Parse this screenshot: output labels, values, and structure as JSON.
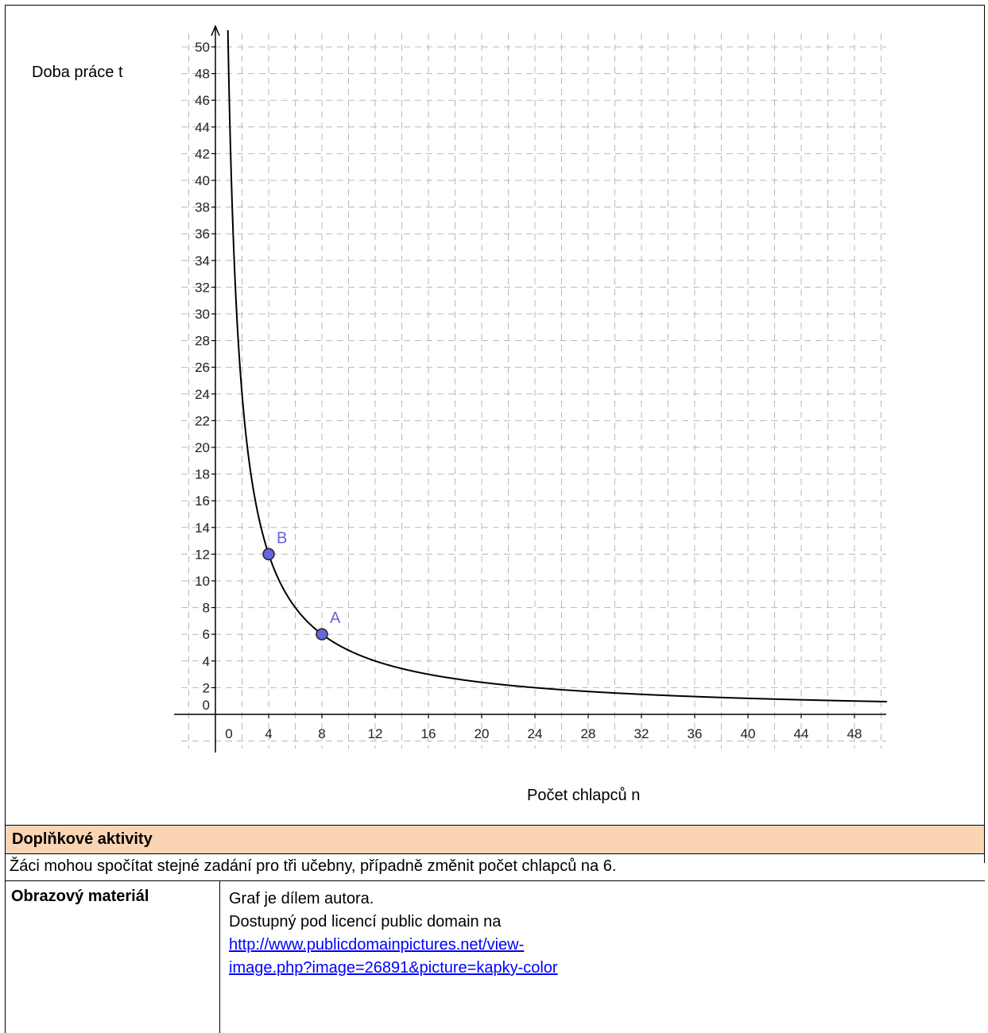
{
  "chart_data": {
    "type": "line",
    "title": "",
    "xlabel": "Počet chlapců n",
    "ylabel": "Doba práce t",
    "xlim": [
      -4,
      50
    ],
    "ylim": [
      -2,
      51
    ],
    "x_ticks": [
      0,
      4,
      8,
      12,
      16,
      20,
      24,
      28,
      32,
      36,
      40,
      44,
      48
    ],
    "y_ticks": [
      0,
      2,
      4,
      6,
      8,
      10,
      12,
      14,
      16,
      18,
      20,
      22,
      24,
      26,
      28,
      30,
      32,
      34,
      36,
      38,
      40,
      42,
      44,
      46,
      48,
      50
    ],
    "grid": true,
    "series": [
      {
        "function": "t = 48 / n",
        "x": [
          1,
          1.5,
          2,
          3,
          4,
          5,
          6,
          8,
          10,
          12,
          16,
          20,
          24,
          28,
          32,
          36,
          40,
          44,
          48,
          50
        ],
        "y": [
          48,
          32,
          24,
          16,
          12,
          9.6,
          8,
          6,
          4.8,
          4,
          3,
          2.4,
          2,
          1.71,
          1.5,
          1.33,
          1.2,
          1.09,
          1,
          0.96
        ],
        "color": "#000000"
      }
    ],
    "points": [
      {
        "label": "B",
        "x": 4,
        "y": 12,
        "color": "#6666dd"
      },
      {
        "label": "A",
        "x": 8,
        "y": 6,
        "color": "#6666dd"
      }
    ]
  },
  "section": {
    "header": "Doplňkové aktivity",
    "text": "Žáci mohou spočítat stejné zadání pro tři učebny, případně změnit počet chlapců na 6."
  },
  "materials": {
    "label": "Obrazový materiál",
    "line1": "Graf je dílem autora.",
    "line2": "Dostupný pod licencí public domain na",
    "link_line1": "http://www.publicdomainpictures.net/view-",
    "link_line2": "image.php?image=26891&picture=kapky-color"
  }
}
